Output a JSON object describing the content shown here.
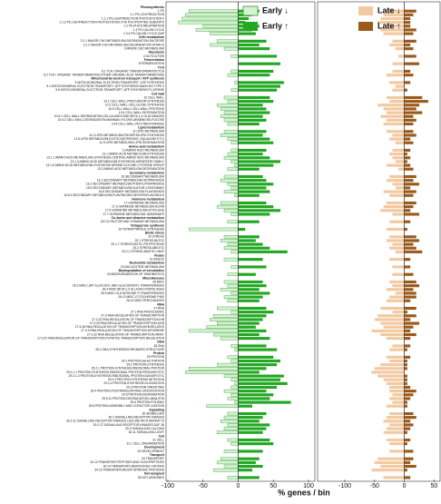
{
  "chart_data": {
    "type": "diverging-bar",
    "xlabel": "% genes / bin",
    "xlim": [
      -100,
      100
    ],
    "xticks": [
      -100,
      -50,
      0,
      50,
      100
    ],
    "x2lim": [
      -100,
      60
    ],
    "x2ticks": [
      -100,
      -50,
      0,
      50
    ],
    "categories": [
      "Photosynthesis",
      "1 PS",
      "1.1 PS.LIGHTREACTION",
      "1.1.1 PS.LIGHTREACTION.PHOTOSYSTEM II",
      "1.1.2 PS.LIGHTREACTION.PHOTOSYSTEM I.PSI POLYPEPTIDE SUBUNITS",
      "1.2 PS.PHOTORESPIRATION",
      "1.3 PS.CALVIN CYCLE",
      "1.3.4 PS.CALVIN CYCLE.GAP",
      "CHO metabolism",
      "2.2.1 MAJOR CHO METABOLISM.DEGRADATION.SUCROSE",
      "2.2.2 MAJOR CHO METABOLISM.DEGRADATION.STARCH",
      "3 MINOR CHO METABOLISM",
      "Glycolysis",
      "4 GLYCOLYSIS",
      "Fermentation",
      "5 FERMENTATION",
      "TCA",
      "8.1 TCA / ORGANIC TRANSFORMATION.TCA",
      "8.2 TCA / ORGANIC TRANSFORMATION.OTHER ORGANIC ACID TRANSFORMATIONS",
      "Mitochondrial electron transport / ATP synthesis",
      "9 MITOCHONDRIAL ELECTRON TRANSPORT / ATP SYNTHESIS",
      "9.1 MITOCHONDRIAL ELECTRON TRANSPORT / ATP SYNTHESIS.NADH-DH.TYPE II",
      "9.9 MITOCHONDRIAL ELECTRON TRANSPORT / ATP SYNTHESIS.F1-ATPASE",
      "Cell wall",
      "10 CELL WALL",
      "10.1 CELL WALL.PRECURSOR SYNTHESIS",
      "10.2 CELL WALL.CELLULOSE SYNTHESIS",
      "10.5 CELL WALL.CELL WALL PROTEINS",
      "10.6 CELL WALL.DEGRADATION",
      "10.6.1 CELL WALL.DEGRADATION.CELLULASES AND BETA-1,4-GLUCANASES",
      "10.6.2 CELL WALL.DEGRADATION.MANNAN-XYLOSE-ARABINOSE-FUCOSE",
      "10.8 CELL WALL.PECTINESTERASES",
      "Lipid metabolism",
      "11 LIPID METABOLISM",
      "11.3 LIPID METABOLISM.PHOSPHOLIPID SYNTHESIS",
      "11.8 LIPID METABOLISM.EXOTICS(STEROIDS, SQUALENE ETC)",
      "11.9 LIPID METABOLISM.LIPID DEGRADATION",
      "Amino acid metabolism",
      "13 AMINO ACID METABOLISM",
      "13.1 AMINO ACID METABOLISM.SYNTHESIS",
      "13.1.1 AMINO ACID METABOLISM.SYNTHESIS.CENTRAL AMINO ACID METABOLISM",
      "13.1.3 AMINO ACID METABOLISM.SYNTHESIS.ASPARTATE FAMILY",
      "13.1.5 AMINO ACID METABOLISM.SYNTHESIS.SERINE-GLYCINE-CYSTEINE GROUP",
      "13.2 AMINO ACID METABOLISM.DEGRADATION",
      "Secondary metabolism",
      "16 SECONDARY METABOLISM",
      "16.1 SECONDARY METABOLISM.ISOPRENOIDS",
      "16.2 SECONDARY METABOLISM.PHENYLPROPANOIDS",
      "16.5 SECONDARY METABOLISM.SULFUR-CONTAINING",
      "16.8 SECONDARY METABOLISM.FLAVONOIDS",
      "16.8.3 SECONDARY METABOLISM.FLAVONOIDS.DIHYDROFLAVONOLS",
      "Hormone metabolism",
      "17 HORMONE METABOLISM",
      "17.2 HORMONE METABOLISM.AUXIN",
      "17.5 HORMONE METABOLISM.ETHYLENE",
      "17.7 HORMONE METABOLISM.JASMONATE",
      "Co-factor and vitamine metabolism",
      "18 CO-FACTOR AND VITAMINE METABOLISM",
      "Tetrapyrrole synthesis",
      "19 TETRAPYRROLE SYNTHESIS",
      "Biotic stress",
      "20 STRESS",
      "20.1 STRESS.BIOTIC",
      "20.1.7 STRESS.BIOTIC.PR-PROTEINS",
      "20.2 STRESS.ABIOTIC",
      "20.2.1 STRESS.ABIOTIC.HEAT",
      "Redox",
      "21 REDOX",
      "Nucleotide metabolism",
      "23 NUCLEOTIDE METABOLISM",
      "Biodegradation of xenobiotics",
      "24 BIODEGRADATION OF XENOBIOTICS",
      "Miscellaneous",
      "26 MISC",
      "26.2 MISC.UDP GLUCOSYL AND GLUCORONYL TRANSFERASES",
      "26.4 MISC.BETA 1,3 GLUCAN HYDROLASES",
      "26.9 MISC.GLUTATHIONE S TRANSFERASES",
      "26.10 MISC.CYTOCHROME P450",
      "26.12 MISC.PEROXIDASES",
      "RNA",
      "27 RNA",
      "27.1 RNA.PROCESSING",
      "27.3 RNA.REGULATION OF TRANSCRIPTION",
      "27.3.22 RNA.REGULATION OF TRANSCRIPTION.HB",
      "27.3.25 RNA.REGULATION OF TRANSCRIPTION.MYB",
      "27.3.26 RNA.REGULATION OF TRANSCRIPTION.MYB-RELATED",
      "27.3.3 RNA.REGULATION OF TRANSCRIPTION.AP2/EREBP",
      "27.3.32 RNA.REGULATION OF TRANSCRIPTION.WRKY",
      "27.3.67 RNA.REGULATION OF TRANSCRIPTION.PUTATIVE TRANSCRIPTION REGULATOR",
      "DNA",
      "28 DNA",
      "28.1 DNA.SYNTHESIS/CHROMATIN STRUCTURE",
      "Protein",
      "29 PROTEIN",
      "29.1 PROTEIN.AA ACTIVATION",
      "29.2 PROTEIN.SYNTHESIS",
      "29.2.1 PROTEIN.SYNTHESIS.RIBOSOMAL PROTEIN",
      "29.2.1.1 PROTEIN.SYNTHESIS.RIBOSOMAL PROTEIN.PROKARYOTIC",
      "29.2.1.2 PROTEIN.SYNTHESIS.RIBOSOMAL PROTEIN.EUKARYOTIC",
      "29.2.3 PROTEIN.SYNTHESIS.INITIATION",
      "29.2.4 PROTEIN.SYNTHESIS.ELONGATION",
      "29.3 PROTEIN.TARGETING",
      "29.4 PROTEIN.POSTRANSLATIONAL MODIFICATION",
      "29.5 PROTEIN.DEGRADATION",
      "29.5.11 PROTEIN.DEGRADATION.UBIQUITIN",
      "29.6 PROTEIN.FOLDING",
      "29.8 PROTEIN.ASSEMBLY AND COFACTOR LIGATION",
      "Signalling",
      "30 SIGNALLING",
      "30.2 SIGNALLING.RECEPTOR KINASES",
      "30.2.11 SIGNALLING.RECEPTOR KINASES.LEUCINE RICH REPEAT XI",
      "30.2.17 SIGNALLING.RECEPTOR KINASES.DUF 26",
      "30.3 SIGNALLING.CALCIUM",
      "30.11 SIGNALLING.LIGHT",
      "Cell",
      "31 CELL",
      "31.1 CELL.ORGANISATION",
      "Development",
      "33 DEVELOPMENT",
      "Transport",
      "34 TRANSPORT",
      "34.13 TRANSPORT.PEPTIDES AND OLIGOPEPTIDES",
      "34.14 TRANSPORT.UNSPECIFIED CATIONS",
      "34.19 TRANSPORT.MAJOR INTRINSIC PROTEINS",
      "Not assigned",
      "35 NOT ASSIGNED"
    ],
    "series": [
      {
        "name": "Early ↓",
        "color": "#d6f2d2",
        "edgecolor": "#2e9e2e",
        "values": [
          null,
          -70,
          -75,
          -80,
          -85,
          -50,
          -60,
          -40,
          null,
          -30,
          -40,
          -20,
          null,
          -10,
          null,
          0,
          null,
          -10,
          -15,
          null,
          -5,
          0,
          -10,
          null,
          -20,
          -15,
          -30,
          -25,
          -20,
          -25,
          -20,
          -15,
          null,
          -20,
          -25,
          -15,
          -10,
          null,
          -10,
          -15,
          -20,
          -10,
          -5,
          -15,
          null,
          -20,
          -25,
          -15,
          -10,
          -20,
          -5,
          null,
          -25,
          -30,
          -20,
          -10,
          null,
          -15,
          null,
          -70,
          null,
          -20,
          -25,
          -15,
          -20,
          -10,
          null,
          -20,
          null,
          -10,
          null,
          -15,
          null,
          -20,
          -15,
          -25,
          -10,
          -20,
          -15,
          null,
          -30,
          -10,
          -35,
          -40,
          -30,
          -45,
          -70,
          -35,
          -25,
          null,
          -10,
          -5,
          null,
          -15,
          -10,
          -30,
          -70,
          -75,
          -20,
          -10,
          -5,
          -10,
          -20,
          -10,
          -15,
          -5,
          -45,
          null,
          -15,
          -20,
          -25,
          -15,
          -20,
          -30,
          null,
          -15,
          -10,
          null,
          -20,
          null,
          -25,
          -30,
          -20,
          -35,
          null,
          -15
        ]
      },
      {
        "name": "Early ↑",
        "color": "#22a822",
        "values": [
          null,
          30,
          20,
          15,
          10,
          30,
          20,
          25,
          null,
          40,
          30,
          45,
          null,
          55,
          null,
          60,
          null,
          50,
          45,
          null,
          65,
          60,
          55,
          null,
          45,
          50,
          35,
          40,
          45,
          35,
          40,
          30,
          null,
          40,
          35,
          45,
          50,
          null,
          40,
          35,
          45,
          60,
          50,
          30,
          null,
          35,
          40,
          50,
          40,
          45,
          30,
          null,
          40,
          50,
          60,
          45,
          null,
          30,
          null,
          10,
          null,
          30,
          25,
          35,
          45,
          70,
          null,
          35,
          null,
          40,
          null,
          25,
          null,
          35,
          40,
          30,
          45,
          35,
          30,
          null,
          40,
          50,
          40,
          35,
          30,
          25,
          40,
          30,
          45,
          null,
          40,
          55,
          null,
          50,
          60,
          55,
          40,
          30,
          65,
          60,
          70,
          55,
          40,
          50,
          45,
          75,
          20,
          null,
          40,
          35,
          30,
          45,
          40,
          35,
          null,
          45,
          50,
          null,
          35,
          null,
          30,
          25,
          35,
          20,
          null,
          30
        ]
      },
      {
        "name": "Late ↓",
        "color": "#f2c9a0",
        "axis": "x2",
        "values": [
          null,
          -30,
          -35,
          -40,
          -45,
          -30,
          -40,
          -35,
          null,
          -20,
          -25,
          -15,
          null,
          -10,
          null,
          -20,
          null,
          -20,
          -30,
          null,
          -25,
          -15,
          -20,
          null,
          -30,
          -25,
          -45,
          -35,
          -30,
          -40,
          -30,
          -35,
          null,
          -30,
          -20,
          -25,
          -15,
          null,
          -20,
          -25,
          -20,
          -15,
          -30,
          -10,
          null,
          -25,
          -30,
          -20,
          -15,
          -35,
          -25,
          null,
          -30,
          -35,
          -40,
          -20,
          null,
          -25,
          null,
          -30,
          null,
          -25,
          -30,
          -20,
          -25,
          -15,
          null,
          -25,
          null,
          -20,
          null,
          -20,
          null,
          -25,
          -20,
          -30,
          -15,
          -25,
          -30,
          null,
          -40,
          -20,
          -45,
          -50,
          -40,
          -35,
          -55,
          -40,
          -30,
          null,
          -20,
          -25,
          null,
          -30,
          -25,
          -40,
          -50,
          -55,
          -45,
          -35,
          -30,
          -25,
          -25,
          -20,
          -25,
          -20,
          -30,
          null,
          -25,
          -30,
          -35,
          -25,
          -30,
          -35,
          null,
          -30,
          -25,
          null,
          -25,
          null,
          -45,
          -50,
          -40,
          -55,
          null,
          -35
        ]
      },
      {
        "name": "Late ↑",
        "color": "#9b5a1a",
        "axis": "x2",
        "values": [
          null,
          20,
          15,
          10,
          10,
          10,
          20,
          15,
          null,
          20,
          10,
          15,
          null,
          20,
          null,
          25,
          null,
          10,
          15,
          null,
          10,
          0,
          5,
          null,
          30,
          40,
          25,
          20,
          30,
          15,
          20,
          15,
          null,
          15,
          20,
          10,
          15,
          null,
          10,
          5,
          10,
          5,
          10,
          15,
          null,
          20,
          15,
          25,
          10,
          20,
          15,
          null,
          20,
          15,
          10,
          25,
          null,
          10,
          null,
          5,
          null,
          20,
          25,
          15,
          20,
          30,
          null,
          10,
          null,
          10,
          null,
          15,
          null,
          20,
          25,
          15,
          20,
          20,
          10,
          null,
          20,
          5,
          20,
          10,
          25,
          15,
          10,
          20,
          10,
          null,
          10,
          5,
          null,
          10,
          5,
          5,
          5,
          0,
          5,
          5,
          5,
          10,
          20,
          15,
          10,
          5,
          5,
          null,
          15,
          20,
          10,
          15,
          10,
          5,
          null,
          10,
          5,
          null,
          15,
          null,
          15,
          10,
          20,
          5,
          null,
          10
        ]
      }
    ]
  }
}
